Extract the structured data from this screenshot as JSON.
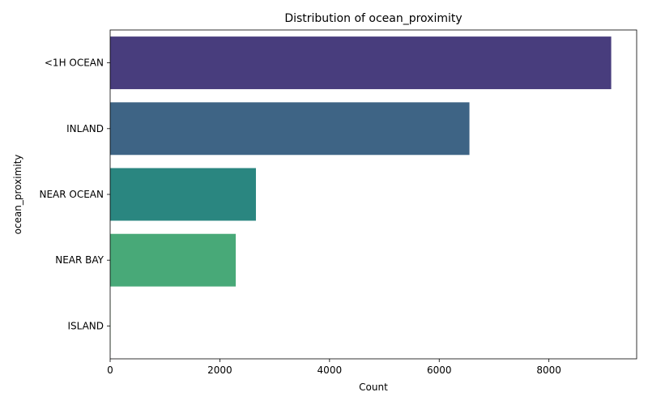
{
  "chart_data": {
    "type": "bar",
    "orientation": "horizontal",
    "title": "Distribution of ocean_proximity",
    "xlabel": "Count",
    "ylabel": "ocean_proximity",
    "categories": [
      "<1H OCEAN",
      "INLAND",
      "NEAR OCEAN",
      "NEAR BAY",
      "ISLAND"
    ],
    "values": [
      9136,
      6551,
      2658,
      2290,
      5
    ],
    "colors": [
      "#483d7d",
      "#3e6485",
      "#2a8680",
      "#48a978",
      "#7fc96a"
    ],
    "xlim": [
      0,
      9600
    ],
    "xticks": [
      0,
      2000,
      4000,
      6000,
      8000
    ],
    "xtick_labels": [
      "0",
      "2000",
      "4000",
      "6000",
      "8000"
    ],
    "grid": false,
    "legend": "none"
  }
}
